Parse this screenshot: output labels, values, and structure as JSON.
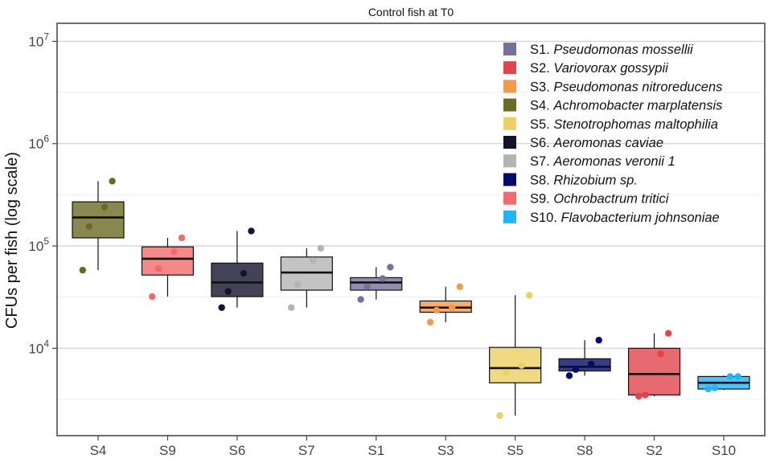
{
  "chart_data": {
    "type": "box",
    "title": "Control fish at T0",
    "xlabel": "",
    "ylabel": "CFUs per fish (log scale)",
    "y_scale": "log10",
    "ylim": [
      1400,
      15000000
    ],
    "y_ticks": [
      10000,
      100000,
      1000000,
      10000000
    ],
    "y_tick_labels": [
      {
        "base": "10",
        "exp": "4"
      },
      {
        "base": "10",
        "exp": "5"
      },
      {
        "base": "10",
        "exp": "6"
      },
      {
        "base": "10",
        "exp": "7"
      }
    ],
    "grid": true,
    "legend_position": "top-right",
    "legend": [
      {
        "code": "S1.",
        "name": "Pseudomonas mossellii",
        "color": "#76709c"
      },
      {
        "code": "S2.",
        "name": "Variovorax gossypii",
        "color": "#e0454c"
      },
      {
        "code": "S3.",
        "name": "Pseudomonas nitroreducens",
        "color": "#f39a4b"
      },
      {
        "code": "S4.",
        "name": "Achromobacter marplatensis",
        "color": "#6b6a24"
      },
      {
        "code": "S5.",
        "name": "Stenotrophomas maltophilia",
        "color": "#eecf63"
      },
      {
        "code": "S6.",
        "name": "Aeromonas caviae",
        "color": "#15132c"
      },
      {
        "code": "S7.",
        "name": "Aeromonas veronii 1",
        "color": "#b4b4b4"
      },
      {
        "code": "S8.",
        "name": "Rhizobium sp.",
        "color": "#020b6a"
      },
      {
        "code": "S9.",
        "name": "Ochrobactrum tritici",
        "color": "#f06b6c"
      },
      {
        "code": "S10.",
        "name": "Flavobacterium johnsoniae",
        "color": "#23b4f8"
      }
    ],
    "categories": [
      "S4",
      "S9",
      "S6",
      "S7",
      "S1",
      "S3",
      "S5",
      "S8",
      "S2",
      "S10"
    ],
    "boxes": [
      {
        "category": "S4",
        "color": "#6b6a24",
        "q1": 120000,
        "median": 190000,
        "q3": 270000,
        "whisker_low": 58000,
        "whisker_high": 430000,
        "points": [
          430000,
          240000,
          155000,
          58000
        ]
      },
      {
        "category": "S9",
        "color": "#f06b6c",
        "q1": 52000,
        "median": 75000,
        "q3": 98000,
        "whisker_low": 32000,
        "whisker_high": 120000,
        "points": [
          120000,
          88000,
          60000,
          32000
        ]
      },
      {
        "category": "S6",
        "color": "#15132c",
        "q1": 32000,
        "median": 44000,
        "q3": 68000,
        "whisker_low": 25000,
        "whisker_high": 140000,
        "points": [
          140000,
          54000,
          36000,
          25000
        ]
      },
      {
        "category": "S7",
        "color": "#b4b4b4",
        "q1": 37000,
        "median": 55000,
        "q3": 78000,
        "whisker_low": 25000,
        "whisker_high": 95000,
        "points": [
          95000,
          72000,
          42000,
          25000
        ]
      },
      {
        "category": "S1",
        "color": "#76709c",
        "q1": 37000,
        "median": 44000,
        "q3": 49000,
        "whisker_low": 30000,
        "whisker_high": 62000,
        "points": [
          62000,
          48000,
          40000,
          30000
        ]
      },
      {
        "category": "S3",
        "color": "#f39a4b",
        "q1": 22500,
        "median": 25000,
        "q3": 29000,
        "whisker_low": 18000,
        "whisker_high": 40000,
        "points": [
          40000,
          25000,
          23500,
          18000
        ]
      },
      {
        "category": "S5",
        "color": "#eecf63",
        "q1": 4600,
        "median": 6400,
        "q3": 10200,
        "whisker_low": 2200,
        "whisker_high": 33000,
        "points": [
          33000,
          6800,
          5800,
          2200
        ]
      },
      {
        "category": "S8",
        "color": "#020b6a",
        "q1": 6000,
        "median": 6600,
        "q3": 7900,
        "whisker_low": 5400,
        "whisker_high": 12000,
        "points": [
          12000,
          7000,
          6200,
          5400
        ]
      },
      {
        "category": "S2",
        "color": "#e0454c",
        "q1": 3500,
        "median": 5600,
        "q3": 10000,
        "whisker_low": 3400,
        "whisker_high": 14000,
        "points": [
          14000,
          8800,
          3500,
          3400
        ]
      },
      {
        "category": "S10",
        "color": "#23b4f8",
        "q1": 4000,
        "median": 4600,
        "q3": 5300,
        "whisker_low": 3900,
        "whisker_high": 5400,
        "points": [
          5300,
          5300,
          4100,
          4000
        ]
      }
    ]
  }
}
